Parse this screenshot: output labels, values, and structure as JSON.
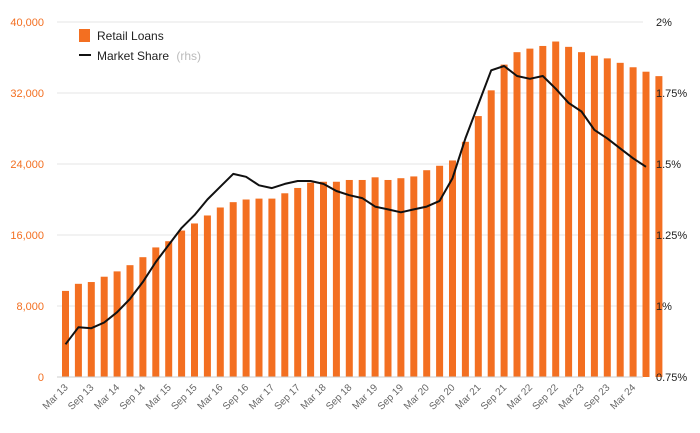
{
  "chart_data": {
    "type": "bar+line",
    "title": "",
    "legend": {
      "placement": "top-left",
      "items": [
        {
          "label": "Retail Loans",
          "suffix": "",
          "color": "#f36f21",
          "kind": "bar"
        },
        {
          "label": "Market Share",
          "suffix": "(rhs)",
          "color": "#111111",
          "kind": "line"
        }
      ]
    },
    "y_left": {
      "min": 0,
      "max": 40000,
      "ticks": [
        "0",
        "8,000",
        "16,000",
        "24,000",
        "32,000",
        "40,000"
      ],
      "tick_values": [
        0,
        8000,
        16000,
        24000,
        32000,
        40000
      ],
      "color": "#f36f21"
    },
    "y_right": {
      "min": 0.75,
      "max": 2.0,
      "ticks": [
        "0.75%",
        "1%",
        "1.25%",
        "1.5%",
        "1.75%",
        "2%"
      ],
      "tick_values": [
        0.75,
        1.0,
        1.25,
        1.5,
        1.75,
        2.0
      ]
    },
    "x_tick_labels": [
      "Mar 13",
      "Sep 13",
      "Mar 14",
      "Sep 14",
      "Mar 15",
      "Sep 15",
      "Mar 16",
      "Sep 16",
      "Mar 17",
      "Sep 17",
      "Mar 18",
      "Sep 18",
      "Mar 19",
      "Sep 19",
      "Mar 20",
      "Sep 20",
      "Mar 21",
      "Sep 21",
      "Mar 22",
      "Sep 22",
      "Mar 23",
      "Sep 23",
      "Mar 24"
    ],
    "grid": "horizontal",
    "series": [
      {
        "name": "Retail Loans",
        "type": "bar",
        "color": "#f36f21",
        "values": [
          9700,
          10500,
          10700,
          11300,
          11900,
          12600,
          13500,
          14600,
          15300,
          16500,
          17300,
          18200,
          19100,
          19700,
          20000,
          20100,
          20100,
          20700,
          21300,
          21900,
          22000,
          22000,
          22200,
          22200,
          22500,
          22200,
          22400,
          22600,
          23300,
          23800,
          24400,
          26500,
          29400,
          32300,
          35200,
          36600,
          37000,
          37300,
          37800,
          37200,
          36600,
          36200,
          35900,
          35400,
          34900,
          34400,
          33900
        ]
      },
      {
        "name": "Market Share",
        "type": "line",
        "axis": "right",
        "color": "#111111",
        "values": [
          0.865,
          0.925,
          0.922,
          0.942,
          0.978,
          1.025,
          1.085,
          1.155,
          1.215,
          1.275,
          1.32,
          1.375,
          1.42,
          1.465,
          1.455,
          1.425,
          1.415,
          1.43,
          1.44,
          1.44,
          1.43,
          1.405,
          1.39,
          1.38,
          1.35,
          1.34,
          1.33,
          1.34,
          1.35,
          1.37,
          1.45,
          1.59,
          1.71,
          1.83,
          1.845,
          1.81,
          1.8,
          1.81,
          1.765,
          1.715,
          1.685,
          1.62,
          1.59,
          1.555,
          1.52,
          1.49
        ]
      }
    ]
  }
}
